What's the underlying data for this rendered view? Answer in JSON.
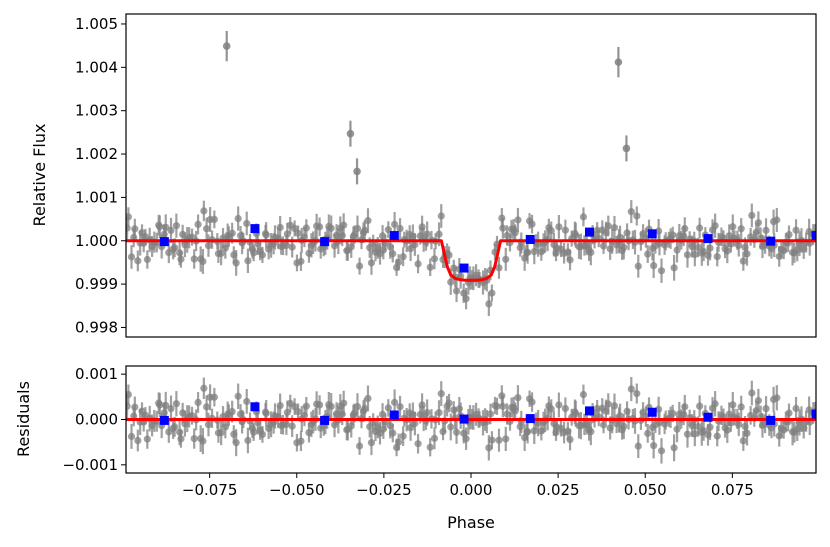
{
  "colors": {
    "data_points": "#808080",
    "binned_points": "#0000ff",
    "model": "#ff0000"
  },
  "chart_data": [
    {
      "type": "scatter",
      "panel": "top",
      "xlabel": "",
      "ylabel": "Relative Flux",
      "xlim": [
        -0.099,
        0.099
      ],
      "ylim": [
        0.99778,
        1.00523
      ],
      "yticks": [
        0.998,
        0.999,
        1.0,
        1.001,
        1.002,
        1.003,
        1.004,
        1.005
      ],
      "ytick_labels": [
        "0.998",
        "0.999",
        "1.000",
        "1.001",
        "1.002",
        "1.003",
        "1.004",
        "1.005"
      ],
      "show_xtick_labels": false,
      "outliers": [
        {
          "x": -0.0701,
          "y": 1.00449,
          "err": 0.00035
        },
        {
          "x": -0.0346,
          "y": 1.00247,
          "err": 0.0003
        },
        {
          "x": -0.0327,
          "y": 1.0016,
          "err": 0.0003
        },
        {
          "x": 0.0423,
          "y": 1.00412,
          "err": 0.00035
        },
        {
          "x": 0.0446,
          "y": 1.00213,
          "err": 0.0003
        }
      ],
      "binned": {
        "x": [
          -0.088,
          -0.062,
          -0.042,
          -0.022,
          -0.002,
          0.017,
          0.034,
          0.052,
          0.068,
          0.086,
          0.099
        ],
        "y": [
          0.99998,
          1.00028,
          0.99998,
          1.00012,
          0.99937,
          1.00003,
          1.0002,
          1.00016,
          1.00005,
          0.99999,
          1.00012
        ]
      },
      "model": {
        "x": [
          -0.099,
          -0.0085,
          -0.0078,
          -0.0068,
          -0.0058,
          -0.0045,
          -0.003,
          -0.0015,
          0.0,
          0.0015,
          0.003,
          0.0045,
          0.0058,
          0.0068,
          0.0078,
          0.0085,
          0.099
        ],
        "y": [
          1.0,
          1.0,
          0.99975,
          0.9994,
          0.99921,
          0.99913,
          0.9991,
          0.99909,
          0.99909,
          0.99909,
          0.9991,
          0.99913,
          0.99921,
          0.9994,
          0.99975,
          1.0,
          1.0
        ]
      }
    },
    {
      "type": "scatter",
      "panel": "bottom",
      "xlabel": "Phase",
      "ylabel": "Residuals",
      "xlim": [
        -0.099,
        0.099
      ],
      "ylim": [
        -0.00118,
        0.00118
      ],
      "yticks": [
        -0.001,
        0.0,
        0.001
      ],
      "ytick_labels": [
        "−0.001",
        "0.000",
        "0.001"
      ],
      "xticks": [
        -0.075,
        -0.05,
        -0.025,
        0.0,
        0.025,
        0.05,
        0.075
      ],
      "xtick_labels": [
        "−0.075",
        "−0.050",
        "−0.025",
        "0.000",
        "0.025",
        "0.050",
        "0.075"
      ],
      "binned": {
        "x": [
          -0.088,
          -0.062,
          -0.042,
          -0.022,
          -0.002,
          0.017,
          0.034,
          0.052,
          0.068,
          0.086,
          0.099
        ],
        "y": [
          -2e-05,
          0.00028,
          -2e-05,
          0.0001,
          1e-05,
          2e-05,
          0.00019,
          0.00016,
          5e-05,
          -2e-05,
          0.00012
        ]
      },
      "model": {
        "x": [
          -0.099,
          0.099
        ],
        "y": [
          0.0,
          0.0
        ]
      }
    }
  ]
}
